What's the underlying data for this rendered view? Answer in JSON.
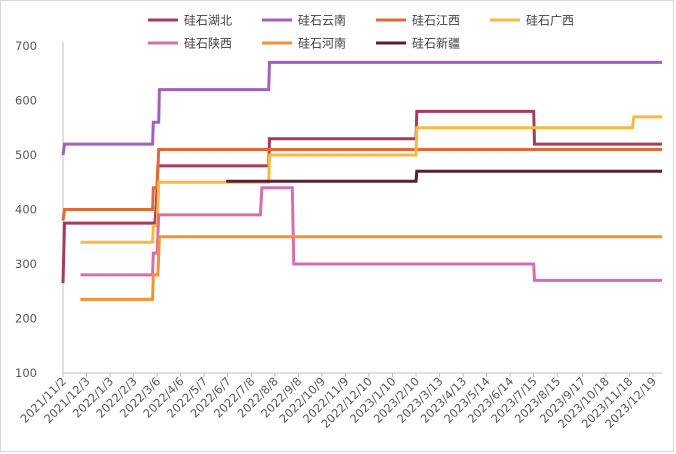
{
  "chart_data": {
    "type": "line",
    "title": "",
    "xlabel": "",
    "ylabel": "",
    "ylim": [
      100,
      700
    ],
    "yticks": [
      100,
      200,
      300,
      400,
      500,
      600,
      700
    ],
    "grid": false,
    "legend_position": "top",
    "x_tick_labels": [
      "2021/11/2",
      "2021/12/3",
      "2022/1/3",
      "2022/2/3",
      "2022/3/6",
      "2022/4/6",
      "2022/5/7",
      "2022/6/7",
      "2022/7/8",
      "2022/8/8",
      "2022/9/8",
      "2022/10/9",
      "2022/11/9",
      "2022/12/10",
      "2023/1/10",
      "2023/2/10",
      "2023/3/13",
      "2023/4/13",
      "2023/5/14",
      "2023/6/14",
      "2023/7/15",
      "2023/8/15",
      "2023/9/17",
      "2023/10/18",
      "2023/11/18",
      "2023/12/19"
    ],
    "series": [
      {
        "name": "硅石湖北",
        "color": "#a9395f",
        "points": [
          [
            "2021/11/2",
            265
          ],
          [
            "2021/11/4",
            375
          ],
          [
            "2022/3/3",
            375
          ],
          [
            "2022/3/5",
            410
          ],
          [
            "2022/3/7",
            480
          ],
          [
            "2022/7/31",
            480
          ],
          [
            "2022/8/1",
            530
          ],
          [
            "2023/2/10",
            530
          ],
          [
            "2023/2/11",
            580
          ],
          [
            "2023/7/15",
            580
          ],
          [
            "2023/7/16",
            520
          ],
          [
            "2023/12/31",
            520
          ]
        ]
      },
      {
        "name": "硅石云南",
        "color": "#a35fbe",
        "points": [
          [
            "2021/11/2",
            500
          ],
          [
            "2021/11/4",
            520
          ],
          [
            "2022/2/28",
            520
          ],
          [
            "2022/3/1",
            560
          ],
          [
            "2022/3/8",
            560
          ],
          [
            "2022/3/9",
            620
          ],
          [
            "2022/7/31",
            620
          ],
          [
            "2022/8/1",
            670
          ],
          [
            "2023/12/31",
            670
          ]
        ]
      },
      {
        "name": "硅石江西",
        "color": "#e06a37",
        "points": [
          [
            "2021/11/2",
            380
          ],
          [
            "2021/11/4",
            400
          ],
          [
            "2022/2/28",
            400
          ],
          [
            "2022/3/1",
            440
          ],
          [
            "2022/3/6",
            440
          ],
          [
            "2022/3/8",
            510
          ],
          [
            "2023/12/31",
            510
          ]
        ]
      },
      {
        "name": "硅石广西",
        "color": "#f7b942",
        "points": [
          [
            "2021/11/25",
            340
          ],
          [
            "2022/2/28",
            340
          ],
          [
            "2022/3/1",
            370
          ],
          [
            "2022/3/6",
            370
          ],
          [
            "2022/3/8",
            450
          ],
          [
            "2022/6/5",
            450
          ],
          [
            "2022/7/31",
            450
          ],
          [
            "2022/8/1",
            500
          ],
          [
            "2023/2/10",
            500
          ],
          [
            "2023/2/11",
            550
          ],
          [
            "2023/11/22",
            550
          ],
          [
            "2023/11/24",
            570
          ],
          [
            "2023/12/31",
            570
          ]
        ]
      },
      {
        "name": "硅石陕西",
        "color": "#d46fae",
        "points": [
          [
            "2021/11/25",
            280
          ],
          [
            "2022/2/28",
            280
          ],
          [
            "2022/3/1",
            320
          ],
          [
            "2022/3/6",
            320
          ],
          [
            "2022/3/8",
            390
          ],
          [
            "2022/7/20",
            390
          ],
          [
            "2022/7/22",
            440
          ],
          [
            "2022/8/31",
            440
          ],
          [
            "2022/9/2",
            300
          ],
          [
            "2023/7/15",
            300
          ],
          [
            "2023/7/16",
            270
          ],
          [
            "2023/12/31",
            270
          ]
        ]
      },
      {
        "name": "硅石河南",
        "color": "#f78f35",
        "points": [
          [
            "2021/11/25",
            235
          ],
          [
            "2022/2/28",
            235
          ],
          [
            "2022/3/1",
            280
          ],
          [
            "2022/3/7",
            280
          ],
          [
            "2022/3/9",
            350
          ],
          [
            "2023/12/31",
            350
          ]
        ]
      },
      {
        "name": "硅石新疆",
        "color": "#5b1d36",
        "points": [
          [
            "2022/6/5",
            452
          ],
          [
            "2023/2/10",
            452
          ],
          [
            "2023/2/11",
            470
          ],
          [
            "2023/12/31",
            470
          ]
        ]
      }
    ]
  }
}
